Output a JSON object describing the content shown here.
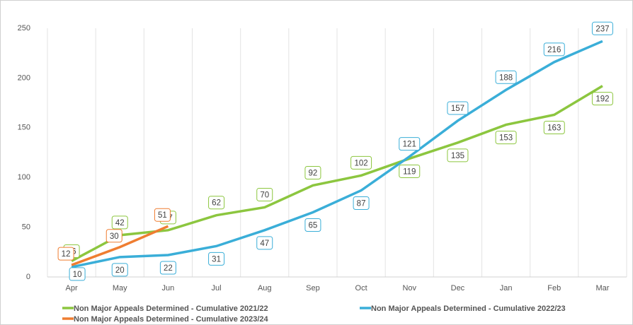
{
  "chart_data": {
    "type": "line",
    "categories": [
      "Apr",
      "May",
      "Jun",
      "Jul",
      "Aug",
      "Sep",
      "Oct",
      "Nov",
      "Dec",
      "Jan",
      "Feb",
      "Mar"
    ],
    "series": [
      {
        "name": "Non Major Appeals Determined - Cumulative 2021/22",
        "color": "#8cc63f",
        "values": [
          16,
          42,
          47,
          62,
          70,
          92,
          102,
          119,
          135,
          153,
          163,
          192
        ]
      },
      {
        "name": "Non Major Appeals Determined - Cumulative 2022/23",
        "color": "#3aaed8",
        "values": [
          10,
          20,
          22,
          31,
          47,
          65,
          87,
          121,
          157,
          188,
          216,
          237
        ]
      },
      {
        "name": "Non Major Appeals Determined - Cumulative 2023/24",
        "color": "#ef7d31",
        "values": [
          12,
          30,
          51,
          null,
          null,
          null,
          null,
          null,
          null,
          null,
          null,
          null
        ]
      }
    ],
    "ylim": [
      0,
      250
    ],
    "yticks": [
      0,
      50,
      100,
      150,
      200,
      250
    ],
    "grid": true,
    "legend": "bottom"
  }
}
